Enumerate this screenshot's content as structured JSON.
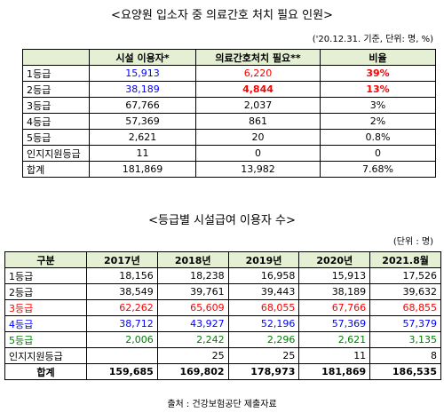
{
  "table1": {
    "title": "<요양원 입소자 중 의료간호 처치 필요 인원>",
    "note": "('20.12.31. 기준, 단위: 명, %)",
    "header": [
      "시설 이용자*",
      "의료간호처치 필요**",
      "비율"
    ],
    "rows": [
      [
        "1등급",
        "15,913",
        "6,220",
        "39%"
      ],
      [
        "2등급",
        "38,189",
        "4,844",
        "13%"
      ],
      [
        "3등급",
        "67,766",
        "2,037",
        "3%"
      ],
      [
        "4등급",
        "57,369",
        "861",
        "2%"
      ],
      [
        "5등급",
        "2,621",
        "20",
        "0.8%"
      ],
      [
        "인지지원등급",
        "11",
        "0",
        "0"
      ],
      [
        "합계",
        "181,869",
        "13,982",
        "7.68%"
      ]
    ]
  },
  "table2": {
    "title": "<등급별 시설급여 이용자 수>",
    "note": "(단위 : 명)",
    "header": [
      "구분",
      "2017년",
      "2018년",
      "2019년",
      "2020년",
      "2021.8월"
    ],
    "rows": [
      [
        "1등급",
        "18,156",
        "18,238",
        "16,958",
        "15,913",
        "17,526"
      ],
      [
        "2등급",
        "38,549",
        "39,761",
        "39,443",
        "38,189",
        "39,632"
      ],
      [
        "3등급",
        "62,262",
        "65,609",
        "68,055",
        "67,766",
        "68,855"
      ],
      [
        "4등급",
        "38,712",
        "43,927",
        "52,196",
        "57,369",
        "57,379"
      ],
      [
        "5등급",
        "2,006",
        "2,242",
        "2,296",
        "2,621",
        "3,135"
      ],
      [
        "인지지원등급",
        null,
        "25",
        "25",
        "11",
        "8"
      ],
      [
        "합계",
        "159,685",
        "169,802",
        "178,973",
        "181,869",
        "186,535"
      ]
    ]
  },
  "source": "출처 : 건강보험공단 제출자료"
}
